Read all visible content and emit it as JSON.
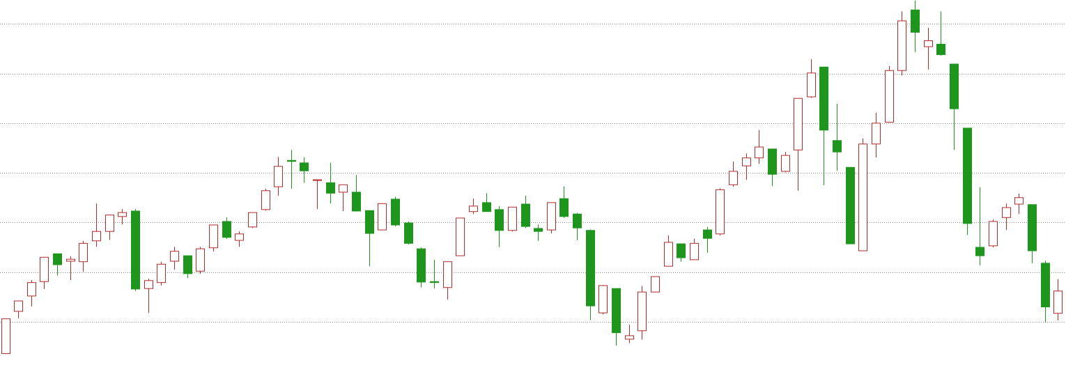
{
  "chart_data": {
    "type": "candlestick",
    "open": [
      3.6,
      12.1,
      15.2,
      18.1,
      23.7,
      22.2,
      22.1,
      26.3,
      28.2,
      31.2,
      32.3,
      16.7,
      17.9,
      22.2,
      23.3,
      20.2,
      24.9,
      30.2,
      26.4,
      29.1,
      32.6,
      37.2,
      42.5,
      42.0,
      38.5,
      38.0,
      36.1,
      36.1,
      32.4,
      28.5,
      34.7,
      29.9,
      24.7,
      18.1,
      16.9,
      23.3,
      32.2,
      34.0,
      32.6,
      28.4,
      33.7,
      28.8,
      28.5,
      34.8,
      31.7,
      28.4,
      11.8,
      16.7,
      6.5,
      8.2,
      16.0,
      21.2,
      25.7,
      22.5,
      28.5,
      27.7,
      37.6,
      41.4,
      43.0,
      44.8,
      40.3,
      44.6,
      55.3,
      61.3,
      46.5,
      41.1,
      24.3,
      45.8,
      50.2,
      60.6,
      72.8,
      65.4,
      65.9,
      61.9,
      49.0,
      25.0,
      25.3,
      31.0,
      33.7,
      33.6,
      21.8,
      11.7
    ],
    "high": [
      10.6,
      14.2,
      18.4,
      23.0,
      23.7,
      23.2,
      26.3,
      33.8,
      31.5,
      32.7,
      32.7,
      18.7,
      22.1,
      25.1,
      23.3,
      25.1,
      29.5,
      31.0,
      28.2,
      32.0,
      36.8,
      43.2,
      44.6,
      43.1,
      38.6,
      42.0,
      37.6,
      39.6,
      32.4,
      33.8,
      35.2,
      30.2,
      25.0,
      22.5,
      22.1,
      30.9,
      34.8,
      35.9,
      33.3,
      33.1,
      35.4,
      29.6,
      34.0,
      37.3,
      31.9,
      28.6,
      17.4,
      16.7,
      9.4,
      17.2,
      19.1,
      27.4,
      25.7,
      26.7,
      29.1,
      36.9,
      42.3,
      43.9,
      48.6,
      44.8,
      44.2,
      55.0,
      62.9,
      61.3,
      53.9,
      41.1,
      46.9,
      52.1,
      61.5,
      72.5,
      74.7,
      69.2,
      72.5,
      61.9,
      49.0,
      37.1,
      30.6,
      33.8,
      35.8,
      33.6,
      22.3,
      18.6
    ],
    "low": [
      3.6,
      10.7,
      13.1,
      16.6,
      19.3,
      18.4,
      20.1,
      25.1,
      26.5,
      29.6,
      16.2,
      11.8,
      17.3,
      20.5,
      18.8,
      19.7,
      24.2,
      26.7,
      25.1,
      28.9,
      32.4,
      35.4,
      36.8,
      38.0,
      32.7,
      33.8,
      32.3,
      32.2,
      21.2,
      28.5,
      29.2,
      25.6,
      16.9,
      16.7,
      14.5,
      23.3,
      31.7,
      32.2,
      25.0,
      28.2,
      28.9,
      26.3,
      27.8,
      30.9,
      26.4,
      10.3,
      11.5,
      5.2,
      5.7,
      6.4,
      15.9,
      21.2,
      22.1,
      22.5,
      23.9,
      27.4,
      37.2,
      38.6,
      41.8,
      37.3,
      40.1,
      36.4,
      55.1,
      37.5,
      40.4,
      25.7,
      24.3,
      43.1,
      50.1,
      59.6,
      64.3,
      60.8,
      63.6,
      44.6,
      27.5,
      21.4,
      25.0,
      28.5,
      31.7,
      21.8,
      9.9,
      10.3
    ],
    "close": [
      10.6,
      14.2,
      17.9,
      23.0,
      21.5,
      22.6,
      25.8,
      28.2,
      31.5,
      32.0,
      16.6,
      18.3,
      21.6,
      24.2,
      19.7,
      24.7,
      29.5,
      27.0,
      27.7,
      32.0,
      36.4,
      41.3,
      42.3,
      40.4,
      38.6,
      35.9,
      37.6,
      32.3,
      27.8,
      33.8,
      29.5,
      25.8,
      18.0,
      17.9,
      22.1,
      30.9,
      33.3,
      32.2,
      28.4,
      33.1,
      29.2,
      28.2,
      34.0,
      31.2,
      28.9,
      13.2,
      17.3,
      7.8,
      7.2,
      16.0,
      19.1,
      26.0,
      22.9,
      25.8,
      26.8,
      36.6,
      40.3,
      43.0,
      45.2,
      39.7,
      43.5,
      55.0,
      60.1,
      48.6,
      44.2,
      25.7,
      45.8,
      50.0,
      60.6,
      70.6,
      68.3,
      66.6,
      63.8,
      52.9,
      29.8,
      23.3,
      30.2,
      33.0,
      35.0,
      24.3,
      13.0,
      16.2
    ],
    "up_color": "#b22a2a",
    "down_color": "#1e961e",
    "ylim": [
      1.3,
      74.8
    ],
    "yticks": [
      10,
      20,
      30,
      40,
      50,
      60,
      70
    ],
    "grid": true
  }
}
